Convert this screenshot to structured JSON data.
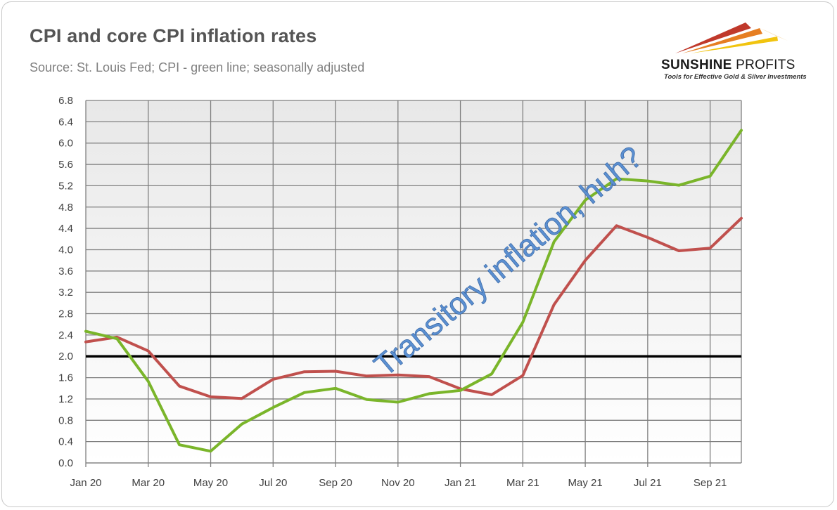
{
  "header": {
    "title": "CPI and core CPI inflation rates",
    "subtitle": "Source: St. Louis Fed; CPI - green line; seasonally adjusted"
  },
  "logo": {
    "name_bold": "SUNSHINE",
    "name_regular": " PROFITS",
    "tagline": "Tools for Effective Gold & Silver Investments"
  },
  "colors": {
    "cpi": "#7ab52a",
    "core_cpi": "#c0504d",
    "reference_line": "#000000",
    "gridline": "#7f7f7f",
    "annotation": "#5b8fd0"
  },
  "chart_data": {
    "type": "line",
    "title": "CPI and core CPI inflation rates",
    "xlabel": "",
    "ylabel": "",
    "x": [
      "Jan 20",
      "Feb 20",
      "Mar 20",
      "Apr 20",
      "May 20",
      "Jun 20",
      "Jul 20",
      "Aug 20",
      "Sep 20",
      "Oct 20",
      "Nov 20",
      "Dec 20",
      "Jan 21",
      "Feb 21",
      "Mar 21",
      "Apr 21",
      "May 21",
      "Jun 21",
      "Jul 21",
      "Aug 21",
      "Sep 21",
      "Oct 21"
    ],
    "x_tick_labels": [
      "Jan 20",
      "Mar 20",
      "May 20",
      "Jul 20",
      "Sep 20",
      "Nov 20",
      "Jan 21",
      "Mar 21",
      "May 21",
      "Jul 21",
      "Sep 21"
    ],
    "y_ticks": [
      "0.0",
      "0.4",
      "0.8",
      "1.2",
      "1.6",
      "2.0",
      "2.4",
      "2.8",
      "3.2",
      "3.6",
      "4.0",
      "4.4",
      "4.8",
      "5.2",
      "5.6",
      "6.0",
      "6.4",
      "6.8"
    ],
    "ylim": [
      0,
      6.8
    ],
    "grid": true,
    "series": [
      {
        "values": [
          2.47,
          2.33,
          1.53,
          0.34,
          0.22,
          0.73,
          1.04,
          1.32,
          1.4,
          1.19,
          1.14,
          1.3,
          1.36,
          1.67,
          2.64,
          4.15,
          4.93,
          5.33,
          5.29,
          5.21,
          5.38,
          6.24
        ],
        "color": "#7ab52a"
      },
      {
        "values": [
          2.27,
          2.36,
          2.1,
          1.44,
          1.24,
          1.21,
          1.57,
          1.71,
          1.72,
          1.63,
          1.65,
          1.62,
          1.39,
          1.28,
          1.64,
          2.97,
          3.8,
          4.45,
          4.23,
          3.98,
          4.03,
          4.59
        ],
        "color": "#c0504d"
      }
    ],
    "reference_line": {
      "y": 2.0,
      "color": "#000000"
    },
    "annotations": [
      {
        "text": "Transitory inflation, huh?"
      }
    ]
  }
}
